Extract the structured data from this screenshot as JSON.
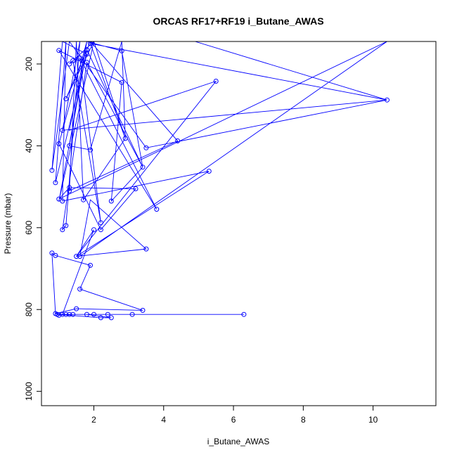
{
  "chart_data": {
    "type": "line",
    "title": "ORCAS RF17+RF19 i_Butane_AWAS",
    "xlabel": "i_Butane_AWAS",
    "ylabel": "Pressure (mbar)",
    "xlim": [
      0.5,
      11.8
    ],
    "ylim": [
      1035,
      145
    ],
    "y_inverted": true,
    "grid": false,
    "xticks": [
      2,
      4,
      6,
      8,
      10
    ],
    "yticks": [
      200,
      400,
      600,
      800,
      1000
    ],
    "point_color": "#0000ff",
    "points": [
      [
        0.9,
        810
      ],
      [
        0.95,
        812
      ],
      [
        1.0,
        814
      ],
      [
        1.1,
        812
      ],
      [
        1.2,
        812
      ],
      [
        1.3,
        812
      ],
      [
        1.4,
        812
      ],
      [
        1.8,
        812
      ],
      [
        2.0,
        812
      ],
      [
        2.2,
        820
      ],
      [
        2.4,
        812
      ],
      [
        2.5,
        820
      ],
      [
        3.1,
        812
      ],
      [
        6.3,
        812
      ],
      [
        1.5,
        798
      ],
      [
        3.4,
        802
      ],
      [
        1.6,
        750
      ],
      [
        1.9,
        692
      ],
      [
        0.8,
        662
      ],
      [
        0.9,
        668
      ],
      [
        1.5,
        670
      ],
      [
        1.6,
        670
      ],
      [
        3.5,
        652
      ],
      [
        1.1,
        605
      ],
      [
        1.2,
        595
      ],
      [
        2.0,
        605
      ],
      [
        2.2,
        605
      ],
      [
        2.2,
        588
      ],
      [
        1.0,
        530
      ],
      [
        1.1,
        535
      ],
      [
        1.7,
        532
      ],
      [
        2.5,
        535
      ],
      [
        3.8,
        555
      ],
      [
        0.8,
        460
      ],
      [
        0.9,
        490
      ],
      [
        1.3,
        502
      ],
      [
        1.3,
        510
      ],
      [
        3.2,
        505
      ],
      [
        3.4,
        452
      ],
      [
        5.3,
        462
      ],
      [
        1.0,
        395
      ],
      [
        1.3,
        400
      ],
      [
        1.9,
        410
      ],
      [
        2.9,
        382
      ],
      [
        3.5,
        405
      ],
      [
        4.4,
        388
      ],
      [
        1.1,
        362
      ],
      [
        1.2,
        285
      ],
      [
        10.4,
        288
      ],
      [
        2.8,
        245
      ],
      [
        5.5,
        242
      ],
      [
        1.3,
        200
      ],
      [
        1.4,
        192
      ],
      [
        1.6,
        185
      ],
      [
        1.8,
        196
      ],
      [
        1.8,
        176
      ],
      [
        1.0,
        167
      ],
      [
        1.8,
        165
      ],
      [
        2.8,
        168
      ],
      [
        1.9,
        150
      ]
    ],
    "path": [
      [
        0.9,
        810
      ],
      [
        1.5,
        798
      ],
      [
        3.4,
        802
      ],
      [
        1.6,
        750
      ],
      [
        1.9,
        692
      ],
      [
        0.9,
        668
      ],
      [
        0.8,
        662
      ],
      [
        0.9,
        810
      ],
      [
        1.0,
        814
      ],
      [
        1.4,
        812
      ],
      [
        1.3,
        812
      ],
      [
        2.0,
        812
      ],
      [
        6.3,
        812
      ],
      [
        1.8,
        812
      ],
      [
        2.5,
        820
      ],
      [
        2.2,
        820
      ],
      [
        0.95,
        812
      ],
      [
        1.2,
        812
      ],
      [
        3.1,
        812
      ],
      [
        2.4,
        812
      ],
      [
        1.1,
        812
      ],
      [
        2.0,
        605
      ],
      [
        1.5,
        670
      ],
      [
        3.5,
        652
      ],
      [
        1.9,
        532
      ],
      [
        1.6,
        670
      ],
      [
        10.4,
        145
      ],
      [
        1.0,
        530
      ],
      [
        1.3,
        502
      ],
      [
        3.2,
        505
      ],
      [
        2.2,
        605
      ],
      [
        1.0,
        395
      ],
      [
        1.8,
        145
      ],
      [
        1.3,
        400
      ],
      [
        1.9,
        410
      ],
      [
        2.8,
        145
      ],
      [
        2.9,
        382
      ],
      [
        1.7,
        532
      ],
      [
        1.5,
        145
      ],
      [
        1.3,
        510
      ],
      [
        4.4,
        388
      ],
      [
        1.9,
        145
      ],
      [
        1.2,
        285
      ],
      [
        2.0,
        145
      ],
      [
        1.3,
        200
      ],
      [
        1.4,
        192
      ],
      [
        2.2,
        588
      ],
      [
        1.6,
        185
      ],
      [
        3.8,
        555
      ],
      [
        1.0,
        167
      ],
      [
        2.8,
        245
      ],
      [
        2.5,
        535
      ],
      [
        3.4,
        452
      ],
      [
        1.8,
        196
      ],
      [
        1.1,
        605
      ],
      [
        1.2,
        595
      ],
      [
        1.6,
        145
      ],
      [
        1.1,
        362
      ],
      [
        10.4,
        288
      ],
      [
        3.5,
        405
      ],
      [
        1.3,
        145
      ],
      [
        0.8,
        460
      ],
      [
        1.1,
        145
      ],
      [
        1.8,
        176
      ],
      [
        0.9,
        490
      ],
      [
        1.2,
        145
      ],
      [
        1.1,
        535
      ],
      [
        5.3,
        462
      ],
      [
        1.5,
        670
      ],
      [
        5.5,
        242
      ],
      [
        1.3,
        362
      ],
      [
        1.8,
        145
      ],
      [
        2.8,
        168
      ],
      [
        3.4,
        452
      ],
      [
        1.8,
        165
      ],
      [
        1.0,
        535
      ],
      [
        2.0,
        145
      ],
      [
        2.9,
        382
      ],
      [
        1.9,
        150
      ],
      [
        10.4,
        288
      ],
      [
        4.9,
        145
      ]
    ]
  }
}
